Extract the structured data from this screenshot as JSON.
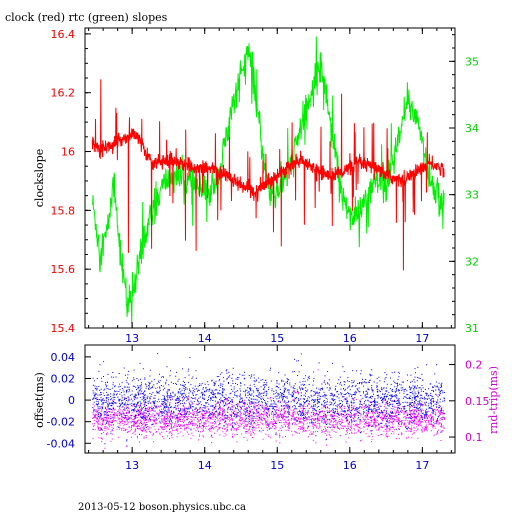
{
  "title": "clock (red) rtc (green) slopes",
  "footer": "2013-05-12  boson.physics.ubc.ca",
  "colors": {
    "clock": "#ff0000",
    "rtc": "#00ee00",
    "offset": "#0000ff",
    "rndtrip": "#ff00ff",
    "axis_left_top": "#ee0000",
    "axis_right_top": "#00cc00",
    "axis_left_bottom": "#0000cc",
    "axis_right_bottom": "#cc00cc"
  },
  "chart_data": [
    {
      "type": "line",
      "name": "slopes",
      "xlim": [
        12.35,
        17.45
      ],
      "ylim": [
        15.4,
        16.42
      ],
      "ylabel": "clockslope",
      "xticks": [
        "13",
        "14",
        "15",
        "16",
        "17"
      ],
      "yticks_left": [
        "15.4",
        "15.6",
        "15.8",
        "16",
        "16.2",
        "16.4"
      ],
      "y2lim": [
        31.0,
        35.5
      ],
      "yticks_right": [
        "31",
        "32",
        "33",
        "34",
        "35"
      ],
      "series": [
        {
          "name": "clock (red)",
          "axis": "left",
          "x": [
            12.45,
            12.55,
            12.7,
            12.85,
            13.0,
            13.1,
            13.2,
            13.3,
            13.45,
            13.6,
            13.75,
            13.9,
            14.1,
            14.3,
            14.5,
            14.7,
            14.9,
            15.1,
            15.3,
            15.5,
            15.7,
            15.9,
            16.1,
            16.3,
            16.5,
            16.7,
            16.9,
            17.1,
            17.3
          ],
          "values": [
            16.03,
            16.01,
            16.02,
            16.04,
            16.06,
            16.04,
            15.99,
            15.96,
            15.97,
            15.97,
            15.95,
            15.95,
            15.94,
            15.92,
            15.89,
            15.86,
            15.9,
            15.94,
            15.97,
            15.94,
            15.92,
            15.93,
            15.96,
            15.95,
            15.92,
            15.9,
            15.93,
            15.96,
            15.94
          ]
        },
        {
          "name": "rtc (green)",
          "axis": "right",
          "x": [
            12.45,
            12.55,
            12.65,
            12.75,
            12.85,
            12.95,
            13.05,
            13.15,
            13.3,
            13.45,
            13.6,
            13.75,
            13.9,
            14.05,
            14.2,
            14.35,
            14.5,
            14.6,
            14.7,
            14.8,
            14.9,
            15.05,
            15.2,
            15.35,
            15.5,
            15.6,
            15.75,
            15.9,
            16.05,
            16.2,
            16.35,
            16.5,
            16.65,
            16.8,
            16.95,
            17.1,
            17.3
          ],
          "values": [
            32.9,
            32.2,
            32.4,
            33.2,
            32.0,
            31.3,
            31.7,
            32.3,
            32.8,
            33.2,
            33.3,
            33.2,
            33.1,
            33.0,
            33.3,
            34.2,
            34.8,
            35.2,
            34.5,
            33.6,
            33.0,
            33.1,
            33.5,
            34.1,
            34.6,
            35.0,
            34.0,
            33.0,
            32.6,
            32.9,
            33.2,
            33.1,
            33.7,
            34.4,
            34.1,
            33.2,
            32.8
          ]
        }
      ]
    },
    {
      "type": "scatter",
      "name": "offsets",
      "xlim": [
        12.35,
        17.45
      ],
      "ylim": [
        -0.049,
        0.051
      ],
      "ylabel": "offset(ms)",
      "xticks": [
        "13",
        "14",
        "15",
        "16",
        "17"
      ],
      "yticks_left": [
        "-0.04",
        "-0.02",
        "0",
        "0.02",
        "0.04"
      ],
      "y2lim": [
        0.078,
        0.227
      ],
      "y2label": "rnd-trip(ms)",
      "yticks_right": [
        "0.1",
        "0.15",
        "0.2"
      ],
      "series": [
        {
          "name": "offset",
          "axis": "left",
          "x_range": [
            12.45,
            17.3
          ],
          "center": 0.0,
          "spread": 0.012
        },
        {
          "name": "rnd-trip",
          "axis": "right",
          "x_range": [
            12.45,
            17.3
          ],
          "center": 0.125,
          "spread": 0.012
        }
      ]
    }
  ]
}
